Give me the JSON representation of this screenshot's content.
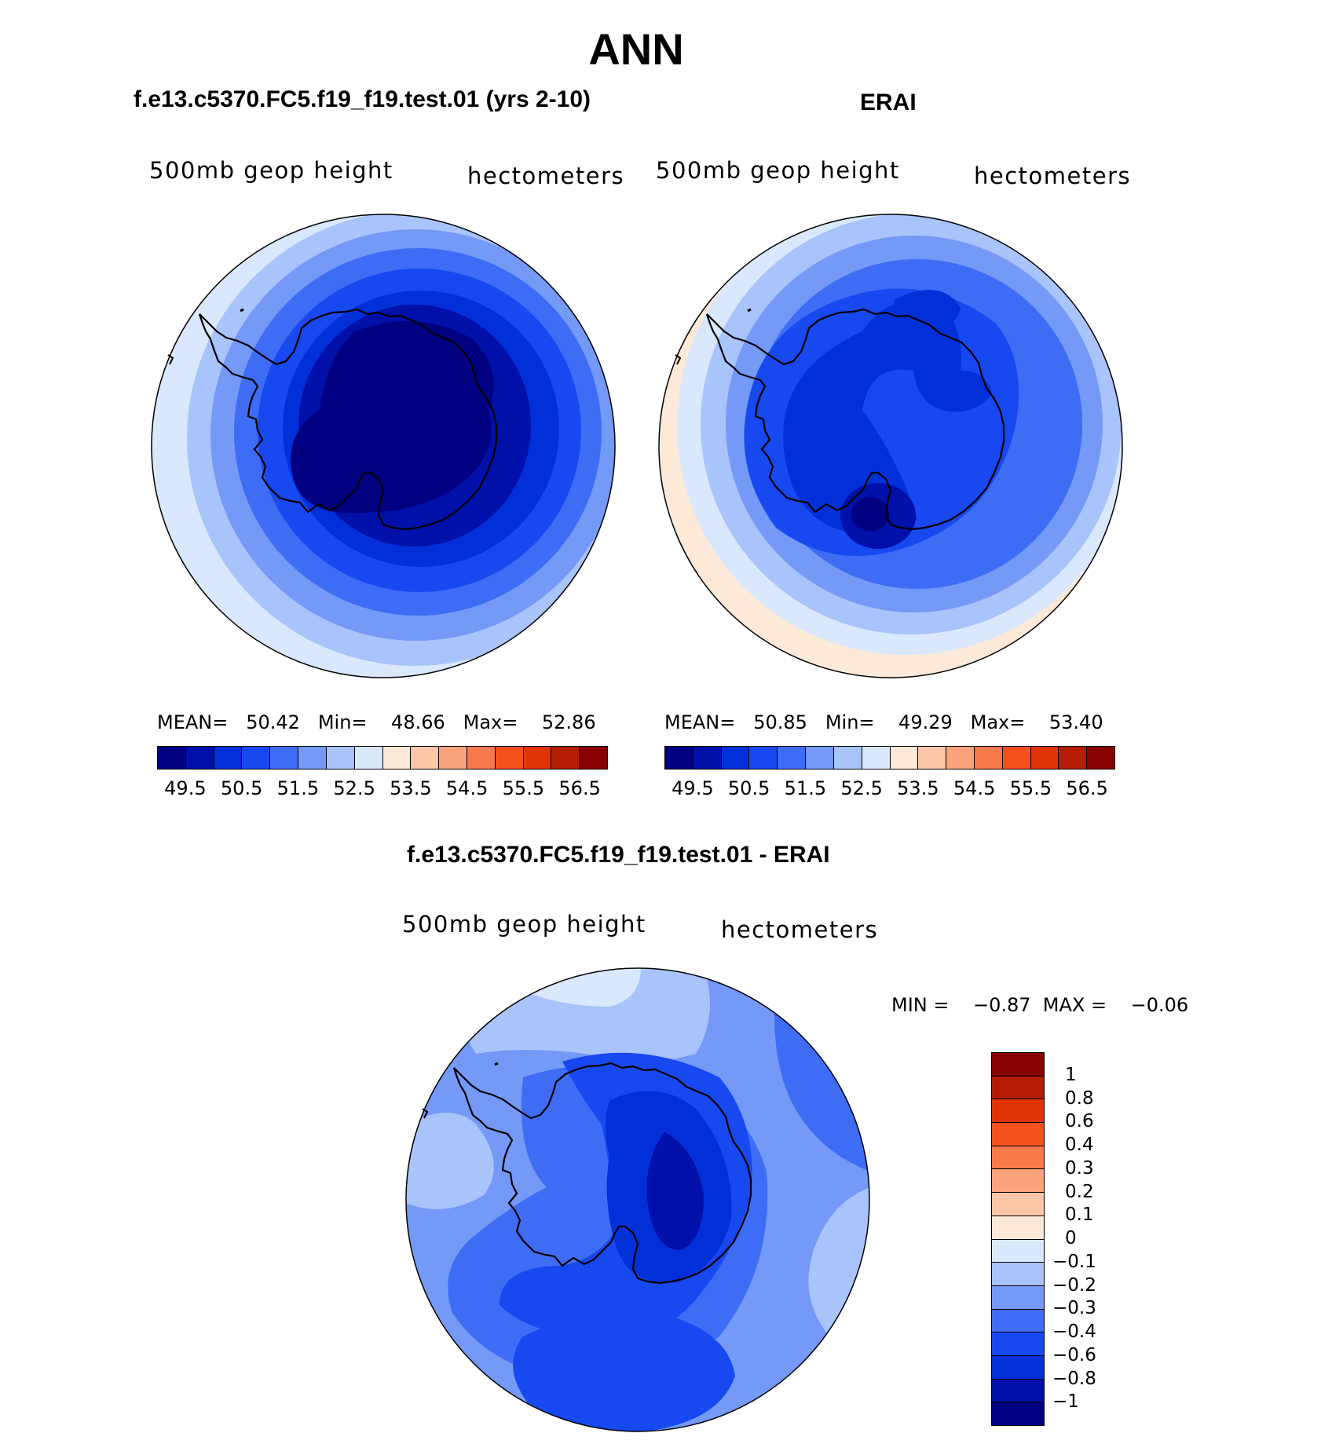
{
  "title": "ANN",
  "colors": {
    "abs_scale": [
      "#000080",
      "#0010a8",
      "#0230d8",
      "#1748f0",
      "#3e6cf5",
      "#7499f7",
      "#a9c3fb",
      "#d9e8fc",
      "#fde9d8",
      "#fcc6a8",
      "#faa37d",
      "#f87a4c",
      "#f4511f",
      "#df3408",
      "#b41d04",
      "#860001"
    ],
    "diff_scale": [
      "#860001",
      "#b41d04",
      "#df3408",
      "#f4511f",
      "#f87a4c",
      "#faa37d",
      "#fcc6a8",
      "#fde9d8",
      "#d9e8fc",
      "#a9c3fb",
      "#7499f7",
      "#3e6cf5",
      "#1748f0",
      "#0230d8",
      "#0010a8",
      "#000080"
    ]
  },
  "panels": {
    "model": {
      "subtitle": "f.e13.c5370.FC5.f19_f19.test.01 (yrs 2-10)",
      "variable": "500mb  geop  height",
      "units": "hectometers",
      "stats": "MEAN=   50.42   Min=    48.66   Max=    52.86",
      "ticks": [
        "49.5",
        "50.5",
        "51.5",
        "52.5",
        "53.5",
        "54.5",
        "55.5",
        "56.5"
      ]
    },
    "obs": {
      "subtitle": "ERAI",
      "variable": "500mb  geop  height",
      "units": "hectometers",
      "stats": "MEAN=   50.85   Min=    49.29   Max=    53.40",
      "ticks": [
        "49.5",
        "50.5",
        "51.5",
        "52.5",
        "53.5",
        "54.5",
        "55.5",
        "56.5"
      ]
    },
    "diff": {
      "subtitle": "f.e13.c5370.FC5.f19_f19.test.01 - ERAI",
      "variable": "500mb  geop  height",
      "units": "hectometers",
      "stats": "MIN =    −0.87  MAX =    −0.06",
      "ticks": [
        "1",
        "0.8",
        "0.6",
        "0.4",
        "0.3",
        "0.2",
        "0.1",
        "0",
        "−0.1",
        "−0.2",
        "−0.3",
        "−0.4",
        "−0.6",
        "−0.8",
        "−1"
      ]
    }
  }
}
